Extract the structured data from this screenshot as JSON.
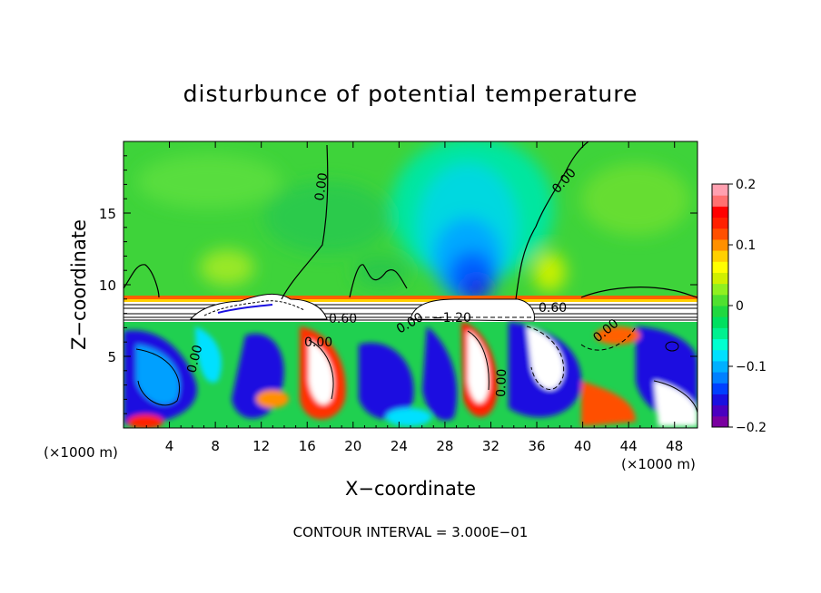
{
  "chart_data": {
    "type": "heatmap",
    "title": "disturbunce of potential temperature",
    "xlabel": "X−coordinate",
    "ylabel": "Z−coordinate",
    "x_unit_left": "(×1000 m)",
    "x_unit_right": "(×1000 m)",
    "footer": "CONTOUR INTERVAL = 3.000E−01",
    "xlim": [
      0,
      50
    ],
    "ylim": [
      0,
      20
    ],
    "x_ticks": [
      4,
      8,
      12,
      16,
      20,
      24,
      28,
      32,
      36,
      40,
      44,
      48
    ],
    "x_tick_labels": [
      "4",
      "8",
      "12",
      "16",
      "20",
      "24",
      "28",
      "32",
      "36",
      "40",
      "44",
      "48"
    ],
    "y_ticks": [
      5,
      10,
      15
    ],
    "y_tick_labels": [
      "5",
      "10",
      "15"
    ],
    "colorbar": {
      "range": [
        -0.2,
        0.2
      ],
      "ticks": [
        0.2,
        0.1,
        0,
        -0.1,
        -0.2
      ],
      "tick_labels": [
        "0.2",
        "0.1",
        "0",
        "−0.1",
        "−0.2"
      ],
      "colors": [
        "#7a00a0",
        "#4a00c0",
        "#1a10e0",
        "#0040ff",
        "#0080ff",
        "#00b0ff",
        "#00e0ff",
        "#00ffd0",
        "#00f090",
        "#00e060",
        "#20d840",
        "#50e030",
        "#90f020",
        "#d0f000",
        "#ffff00",
        "#ffd000",
        "#ff9000",
        "#ff5000",
        "#ff2000",
        "#ff0000",
        "#ff7070",
        "#ffa0b0"
      ]
    },
    "contour_labels": [
      "0.00",
      "0.00",
      "0.60",
      "−1.20",
      "0.60",
      "0.00",
      "0.00",
      "0.00",
      "0.00",
      "0.00"
    ]
  }
}
